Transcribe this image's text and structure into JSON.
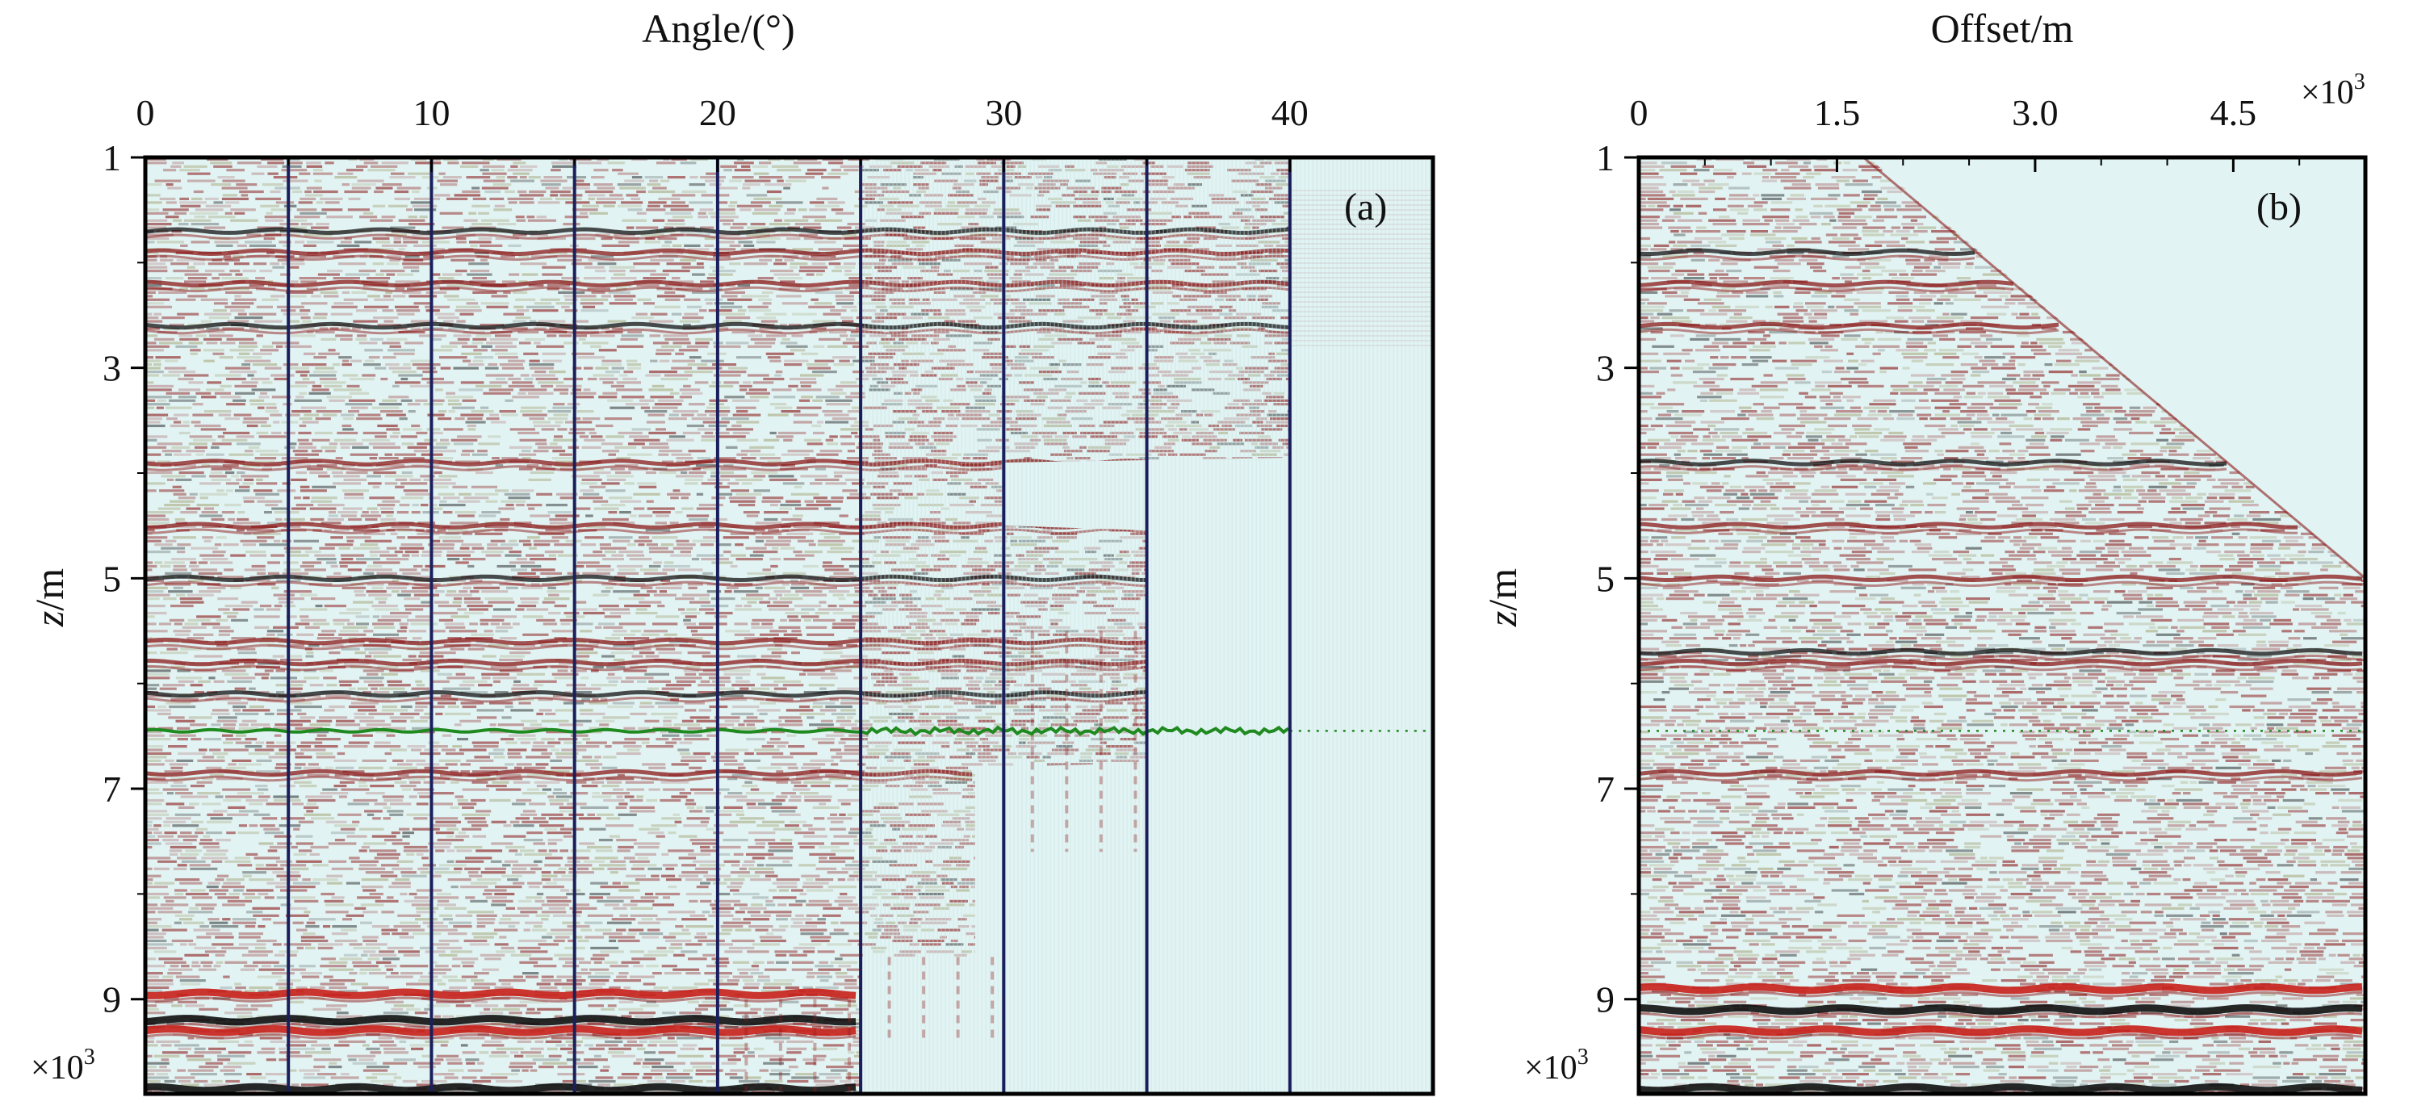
{
  "chart_data": [
    {
      "type": "heatmap",
      "panel_label": "(a)",
      "xlabel": "Angle/(°)",
      "ylabel_italic": "z",
      "ylabel_unit": "/m",
      "xticks": [
        "0",
        "10",
        "20",
        "30",
        "40"
      ],
      "xtick_values": [
        0,
        10,
        20,
        30,
        40
      ],
      "xlim": [
        0,
        45
      ],
      "yticks": [
        "1",
        "3",
        "5",
        "7",
        "9"
      ],
      "ytick_values": [
        1,
        3,
        5,
        7,
        9
      ],
      "ylim": [
        1,
        9.9
      ],
      "y_multiplier": "×10",
      "y_multiplier_exp": "3",
      "gather_boundaries_deg": [
        5,
        10,
        15,
        20,
        25,
        30,
        35,
        40
      ],
      "horizon_depth": 6.45,
      "horizon_color": "#1f8a1f",
      "strong_reflector_depths": [
        1.7,
        1.9,
        2.2,
        2.6,
        3.9,
        4.5,
        5.0,
        5.6,
        5.8,
        6.1,
        6.85,
        8.95,
        9.2,
        9.3,
        9.85
      ],
      "colors": {
        "background": "#e2f3f3",
        "positive": "#8b1a1a",
        "negative": "#111111",
        "gather_line": "#1a1f5c"
      }
    },
    {
      "type": "heatmap",
      "panel_label": "(b)",
      "xlabel": "Offset/m",
      "ylabel_italic": "z",
      "ylabel_unit": "/m",
      "xticks": [
        "0",
        "1.5",
        "3.0",
        "4.5"
      ],
      "xtick_values": [
        0,
        1.5,
        3.0,
        4.5
      ],
      "xlim": [
        0,
        5.5
      ],
      "x_multiplier": "×10",
      "x_multiplier_exp": "3",
      "yticks": [
        "1",
        "3",
        "5",
        "7",
        "9"
      ],
      "ytick_values": [
        1,
        3,
        5,
        7,
        9
      ],
      "ylim": [
        1,
        9.9
      ],
      "y_multiplier": "×10",
      "y_multiplier_exp": "3",
      "horizon_depth": 6.45,
      "mute_start": {
        "offset": 1.7,
        "depth": 1.0
      },
      "mute_end": {
        "offset": 5.5,
        "depth": 5.0
      },
      "strong_reflector_depths": [
        1.9,
        2.2,
        2.6,
        3.9,
        4.5,
        5.0,
        5.7,
        5.8,
        6.85,
        8.9,
        9.1,
        9.3,
        9.85
      ],
      "colors": {
        "background": "#e2f3f3",
        "positive": "#8b1a1a",
        "negative": "#111111"
      }
    }
  ]
}
